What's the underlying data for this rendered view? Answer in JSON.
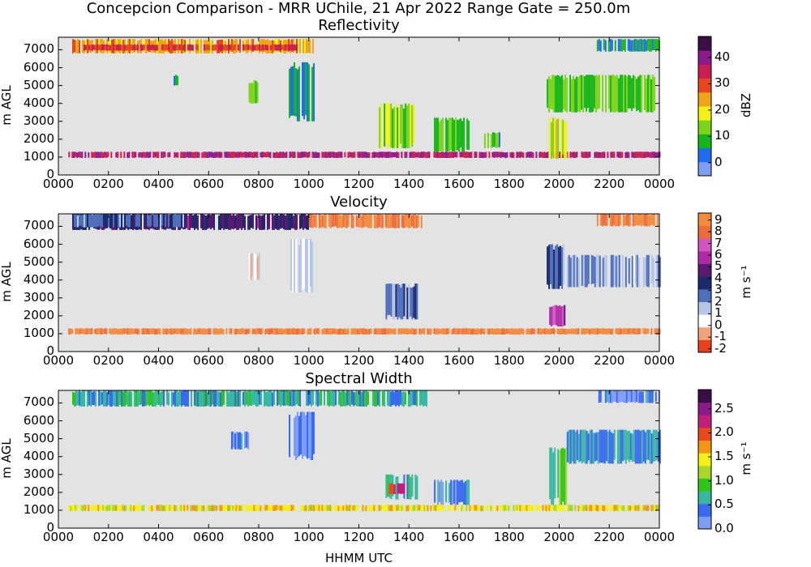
{
  "figure": {
    "suptitle": "Concepcion Comparison - MRR UChile, 21 Apr 2022 Range Gate = 250.0m",
    "xlabel": "HHMM UTC"
  },
  "chart_data": [
    {
      "type": "heatmap",
      "title": "Reflectivity",
      "ylabel": "m AGL",
      "colorbar_label": "dBZ",
      "x_ticks": [
        "0000",
        "0200",
        "0400",
        "0600",
        "0800",
        "1000",
        "1200",
        "1400",
        "1600",
        "1800",
        "2000",
        "2200",
        "0000"
      ],
      "xlim": [
        0,
        24
      ],
      "y_ticks": [
        "0",
        "1000",
        "2000",
        "3000",
        "4000",
        "5000",
        "6000",
        "7000"
      ],
      "ylim": [
        0,
        7700
      ],
      "cbar_ticks": [
        "0",
        "10",
        "20",
        "30",
        "40"
      ],
      "cbar_range": [
        -5,
        48
      ],
      "background": "#e3e3e3",
      "colors": [
        "#7f9cf5",
        "#1f6cf0",
        "#16b51a",
        "#7dd319",
        "#f4f215",
        "#f2a418",
        "#e6481c",
        "#c81e52",
        "#8c1a8c",
        "#3b0f45"
      ],
      "regions": [
        {
          "x0": 0.55,
          "x1": 10.2,
          "y0": 6800,
          "y1": 7600,
          "level": 0.55
        },
        {
          "x0": 1.0,
          "x1": 9.5,
          "y0": 6950,
          "y1": 7300,
          "level": 0.7
        },
        {
          "x0": 21.5,
          "x1": 24,
          "y0": 6900,
          "y1": 7600,
          "level": 0.2
        },
        {
          "x0": 0.4,
          "x1": 24,
          "y0": 950,
          "y1": 1300,
          "level": 0.8
        },
        {
          "x0": 7.6,
          "x1": 7.95,
          "y0": 4000,
          "y1": 5300,
          "level": 0.3
        },
        {
          "x0": 9.2,
          "x1": 10.2,
          "y0": 3000,
          "y1": 6300,
          "level": 0.2
        },
        {
          "x0": 4.6,
          "x1": 4.85,
          "y0": 5000,
          "y1": 5600,
          "level": 0.2
        },
        {
          "x0": 12.8,
          "x1": 14.2,
          "y0": 1500,
          "y1": 4000,
          "level": 0.35
        },
        {
          "x0": 15.0,
          "x1": 16.4,
          "y0": 1300,
          "y1": 3200,
          "level": 0.3
        },
        {
          "x0": 17.0,
          "x1": 17.6,
          "y0": 1500,
          "y1": 2400,
          "level": 0.25
        },
        {
          "x0": 19.5,
          "x1": 23.8,
          "y0": 3500,
          "y1": 5600,
          "level": 0.3
        },
        {
          "x0": 19.6,
          "x1": 20.3,
          "y0": 900,
          "y1": 3200,
          "level": 0.45
        }
      ]
    },
    {
      "type": "heatmap",
      "title": "Velocity",
      "ylabel": "m AGL",
      "colorbar_label": "m s⁻¹",
      "x_ticks": [
        "0000",
        "0200",
        "0400",
        "0600",
        "0800",
        "1000",
        "1200",
        "1400",
        "1600",
        "1800",
        "2000",
        "2200",
        "0000"
      ],
      "xlim": [
        0,
        24
      ],
      "y_ticks": [
        "0",
        "1000",
        "2000",
        "3000",
        "4000",
        "5000",
        "6000",
        "7000"
      ],
      "ylim": [
        0,
        7700
      ],
      "cbar_ticks": [
        "-2",
        "-1",
        "0",
        "1",
        "2",
        "3",
        "4",
        "5",
        "6",
        "7",
        "8",
        "9"
      ],
      "cbar_range": [
        -2.3,
        9.6
      ],
      "background": "#e3e3e3",
      "colors": [
        "#e8401c",
        "#f2a27a",
        "#ffffff",
        "#b5c6e8",
        "#4f6fba",
        "#1a2a6a",
        "#5a1a70",
        "#b02aa8",
        "#d055c0",
        "#ee6a3a",
        "#f38a3c"
      ],
      "regions": [
        {
          "x0": 0.55,
          "x1": 10.0,
          "y0": 6800,
          "y1": 7700,
          "level": 0.55
        },
        {
          "x0": 0.55,
          "x1": 5.0,
          "y0": 6950,
          "y1": 7700,
          "level": 0.42
        },
        {
          "x0": 10.0,
          "x1": 14.5,
          "y0": 6900,
          "y1": 7700,
          "level": 0.93
        },
        {
          "x0": 21.5,
          "x1": 24,
          "y0": 7000,
          "y1": 7700,
          "level": 0.93
        },
        {
          "x0": 0.4,
          "x1": 24,
          "y0": 950,
          "y1": 1300,
          "level": 0.96
        },
        {
          "x0": 9.2,
          "x1": 10.2,
          "y0": 3300,
          "y1": 6300,
          "level": 0.28
        },
        {
          "x0": 7.6,
          "x1": 8.0,
          "y0": 4000,
          "y1": 5500,
          "level": 0.25
        },
        {
          "x0": 13.0,
          "x1": 14.3,
          "y0": 1800,
          "y1": 3800,
          "level": 0.4
        },
        {
          "x0": 19.5,
          "x1": 20.2,
          "y0": 3500,
          "y1": 6000,
          "level": 0.45
        },
        {
          "x0": 19.6,
          "x1": 20.2,
          "y0": 1400,
          "y1": 2600,
          "level": 0.72
        },
        {
          "x0": 20.3,
          "x1": 24,
          "y0": 3600,
          "y1": 5400,
          "level": 0.36
        }
      ]
    },
    {
      "type": "heatmap",
      "title": "Spectral Width",
      "ylabel": "m AGL",
      "colorbar_label": "m s⁻¹",
      "x_ticks": [
        "0000",
        "0200",
        "0400",
        "0600",
        "0800",
        "1000",
        "1200",
        "1400",
        "1600",
        "1800",
        "2000",
        "2200",
        "0000"
      ],
      "xlim": [
        0,
        24
      ],
      "y_ticks": [
        "0",
        "1000",
        "2000",
        "3000",
        "4000",
        "5000",
        "6000",
        "7000"
      ],
      "ylim": [
        0,
        7700
      ],
      "cbar_ticks": [
        "0.0",
        "0.5",
        "1.0",
        "1.5",
        "2.0",
        "2.5"
      ],
      "cbar_range": [
        0,
        2.9
      ],
      "background": "#e3e3e3",
      "colors": [
        "#7f9cf5",
        "#3a6af0",
        "#38b8a0",
        "#2ec41a",
        "#a8d62a",
        "#f4f215",
        "#f29618",
        "#e84a1c",
        "#c0207a",
        "#8c1a8c",
        "#3b0f45"
      ],
      "regions": [
        {
          "x0": 0.55,
          "x1": 14.8,
          "y0": 6800,
          "y1": 7700,
          "level": 0.22
        },
        {
          "x0": 21.5,
          "x1": 24,
          "y0": 7000,
          "y1": 7700,
          "level": 0.1
        },
        {
          "x0": 0.4,
          "x1": 24,
          "y0": 950,
          "y1": 1300,
          "level": 0.5
        },
        {
          "x0": 9.2,
          "x1": 10.2,
          "y0": 3800,
          "y1": 6500,
          "level": 0.1
        },
        {
          "x0": 6.9,
          "x1": 7.6,
          "y0": 4400,
          "y1": 5400,
          "level": 0.1
        },
        {
          "x0": 13.0,
          "x1": 14.3,
          "y0": 1600,
          "y1": 3000,
          "level": 0.2
        },
        {
          "x0": 13.2,
          "x1": 13.8,
          "y0": 1900,
          "y1": 2500,
          "level": 0.75
        },
        {
          "x0": 15.0,
          "x1": 16.4,
          "y0": 1300,
          "y1": 2700,
          "level": 0.15
        },
        {
          "x0": 19.6,
          "x1": 20.3,
          "y0": 1300,
          "y1": 4500,
          "level": 0.3
        },
        {
          "x0": 20.3,
          "x1": 24,
          "y0": 3600,
          "y1": 5500,
          "level": 0.18
        }
      ]
    }
  ]
}
